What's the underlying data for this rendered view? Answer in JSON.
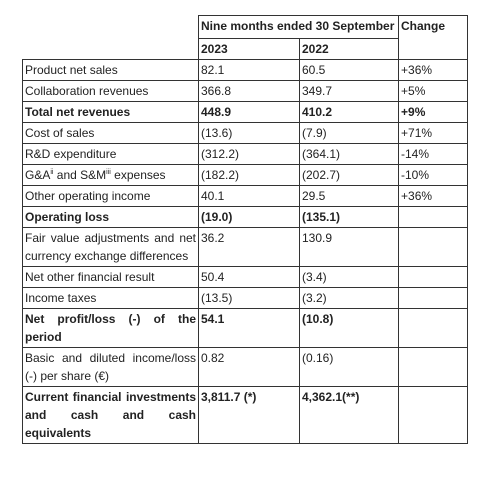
{
  "table": {
    "header": {
      "period": "Nine months ended 30 September",
      "change": "Change",
      "years": [
        "2023",
        "2022"
      ]
    },
    "rows": [
      {
        "label": "Product net sales",
        "a": "82.1",
        "b": "60.5",
        "change": "+36%"
      },
      {
        "label": "Collaboration revenues",
        "a": "366.8",
        "b": "349.7",
        "change": "+5%"
      },
      {
        "label": "Total net revenues",
        "a": "448.9",
        "b": "410.2",
        "change": "+9%",
        "bold": true
      },
      {
        "label": "Cost of sales",
        "a": "(13.6)",
        "b": "(7.9)",
        "change": "+71%"
      },
      {
        "label": "R&D expenditure",
        "a": "(312.2)",
        "b": "(364.1)",
        "change": "-14%"
      },
      {
        "label": [
          "G&A",
          "ii",
          " and S&M",
          "iii",
          " expenses"
        ],
        "a": "(182.2)",
        "b": "(202.7)",
        "change": "-10%"
      },
      {
        "label": "Other operating income",
        "a": "40.1",
        "b": "29.5",
        "change": "+36%"
      },
      {
        "label": "Operating loss",
        "a": "(19.0)",
        "b": "(135.1)",
        "bold": true
      },
      {
        "label": "Fair value adjustments and net currency exchange differences",
        "a": "36.2",
        "b": "130.9"
      },
      {
        "label": "Net other financial result",
        "a": "50.4",
        "b": "(3.4)"
      },
      {
        "label": "Income taxes",
        "a": "(13.5)",
        "b": "(3.2)"
      },
      {
        "label": "Net profit/loss (-) of the period",
        "a": "54.1",
        "b": "(10.8)",
        "bold": true
      },
      {
        "label": "Basic and diluted income/loss (-) per share (€)",
        "a": "0.82",
        "b": "(0.16)"
      },
      {
        "label": "Current financial investments and cash and cash equivalents",
        "a": "3,811.7 (*)",
        "b": "4,362.1(**)",
        "bold": true
      }
    ]
  }
}
